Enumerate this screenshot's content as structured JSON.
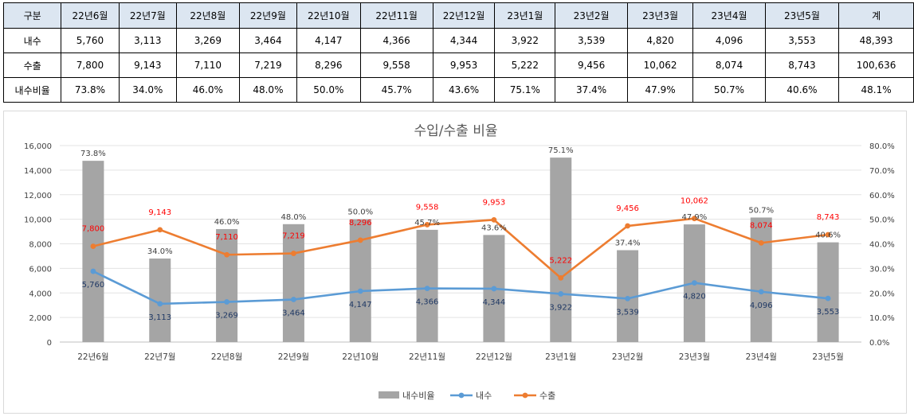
{
  "table": {
    "header": [
      "구분",
      "22년6월",
      "22년7월",
      "22년8월",
      "22년9월",
      "22년10월",
      "22년11월",
      "22년12월",
      "23년1월",
      "23년2월",
      "23년3월",
      "23년4월",
      "23년5월",
      "계"
    ],
    "rows": [
      {
        "label": "내수",
        "values": [
          "5,760",
          "3,113",
          "3,269",
          "3,464",
          "4,147",
          "4,366",
          "4,344",
          "3,922",
          "3,539",
          "4,820",
          "4,096",
          "3,553",
          "48,393"
        ]
      },
      {
        "label": "수출",
        "values": [
          "7,800",
          "9,143",
          "7,110",
          "7,219",
          "8,296",
          "9,558",
          "9,953",
          "5,222",
          "9,456",
          "10,062",
          "8,074",
          "8,743",
          "100,636"
        ]
      },
      {
        "label": "내수비율",
        "values": [
          "73.8%",
          "34.0%",
          "46.0%",
          "48.0%",
          "50.0%",
          "45.7%",
          "43.6%",
          "75.1%",
          "37.4%",
          "47.9%",
          "50.7%",
          "40.6%",
          "48.1%"
        ]
      }
    ]
  },
  "chart_data": {
    "type": "bar+line",
    "title": "수입/수출 비율",
    "categories": [
      "22년6월",
      "22년7월",
      "22년8월",
      "22년9월",
      "22년10월",
      "22년11월",
      "22년12월",
      "23년1월",
      "23년2월",
      "23년3월",
      "23년4월",
      "23년5월"
    ],
    "series": [
      {
        "name": "내수비율",
        "kind": "bar",
        "axis": "right",
        "color": "#a5a5a5",
        "values": [
          73.8,
          34.0,
          46.0,
          48.0,
          50.0,
          45.7,
          43.6,
          75.1,
          37.4,
          47.9,
          50.7,
          40.6
        ],
        "labels": [
          "73.8%",
          "34.0%",
          "46.0%",
          "48.0%",
          "50.0%",
          "45.7%",
          "43.6%",
          "75.1%",
          "37.4%",
          "47.9%",
          "50.7%",
          "40.6%"
        ]
      },
      {
        "name": "내수",
        "kind": "line",
        "axis": "left",
        "color": "#5b9bd5",
        "values": [
          5760,
          3113,
          3269,
          3464,
          4147,
          4366,
          4344,
          3922,
          3539,
          4820,
          4096,
          3553
        ],
        "labels": [
          "5,760",
          "3,113",
          "3,269",
          "3,464",
          "4,147",
          "4,366",
          "4,344",
          "3,922",
          "3,539",
          "4,820",
          "4,096",
          "3,553"
        ]
      },
      {
        "name": "수출",
        "kind": "line",
        "axis": "left",
        "color": "#ed7d31",
        "values": [
          7800,
          9143,
          7110,
          7219,
          8296,
          9558,
          9953,
          5222,
          9456,
          10062,
          8074,
          8743
        ],
        "labels": [
          "7,800",
          "9,143",
          "7,110",
          "7,219",
          "8,296",
          "9,558",
          "9,953",
          "5,222",
          "9,456",
          "10,062",
          "8,074",
          "8,743"
        ]
      }
    ],
    "y_left": {
      "min": 0,
      "max": 16000,
      "step": 2000,
      "ticks": [
        "0",
        "2,000",
        "4,000",
        "6,000",
        "8,000",
        "10,000",
        "12,000",
        "14,000",
        "16,000"
      ]
    },
    "y_right": {
      "min": 0,
      "max": 80,
      "step": 10,
      "ticks": [
        "0.0%",
        "10.0%",
        "20.0%",
        "30.0%",
        "40.0%",
        "50.0%",
        "60.0%",
        "70.0%",
        "80.0%"
      ]
    },
    "legend_position": "bottom",
    "gridlines": true
  }
}
